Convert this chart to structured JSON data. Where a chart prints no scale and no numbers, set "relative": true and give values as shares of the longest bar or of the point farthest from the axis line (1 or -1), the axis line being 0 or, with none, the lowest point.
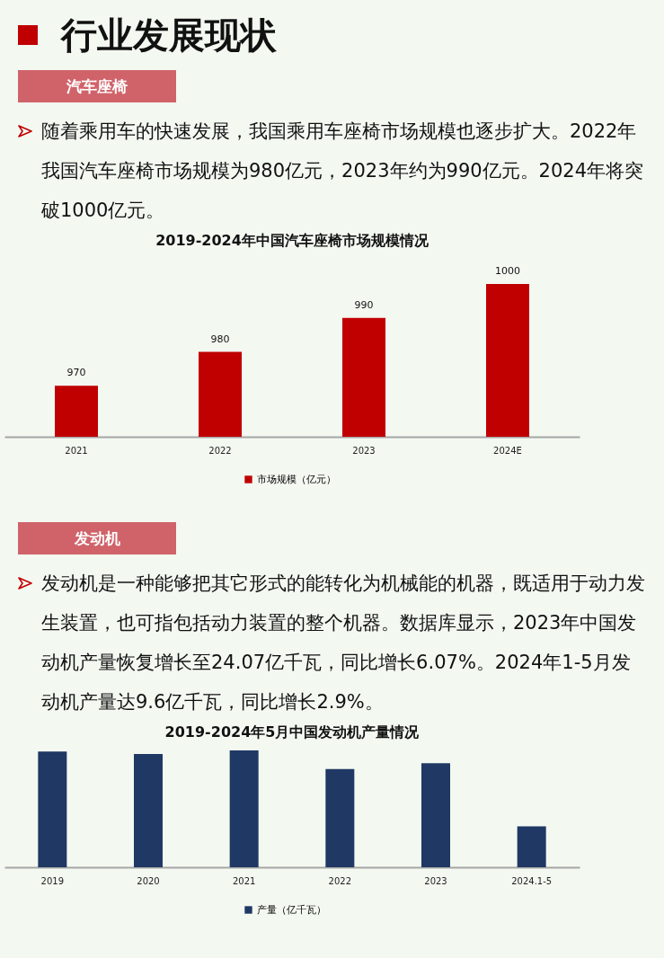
{
  "chart_data": [
    {
      "type": "other",
      "title": "行业发展现状",
      "subtitle": "汽车座椅",
      "annotations": [
        "随着乘用车的快速发展，我国乘用车座椅市场规模也逐步扩大。2022年我国汽车座椅市场规模为980亿元，2023年约为990亿元。2024年将突破1000亿元。"
      ]
    },
    {
      "type": "bar",
      "title": "2019-2024年中国汽车座椅市场规模情况",
      "categories": [
        "2021",
        "2022",
        "2023",
        "2024E"
      ],
      "series": [
        {
          "name": "市场规模（亿元）",
          "color": "#c00000",
          "values": [
            970,
            980,
            990,
            1000
          ]
        }
      ],
      "ylim": [
        955,
        1000
      ],
      "data_labels": true,
      "legend": "bottom"
    },
    {
      "type": "other",
      "subtitle": "发动机",
      "annotations": [
        "发动机是一种能够把其它形式的能转化为机械能的机器，既适用于动力发生装置，也可指包括动力装置的整个机器。数据库显示，2023年中国发动机产量恢复增长至24.07亿千瓦，同比增长6.07%。2024年1-5月发动机产量达9.6亿千瓦，同比增长2.9%。"
      ]
    },
    {
      "type": "bar",
      "title": "2019-2024年5月中国发动机产量情况",
      "categories": [
        "2019",
        "2020",
        "2021",
        "2022",
        "2023",
        "2024.1-5"
      ],
      "series": [
        {
          "name": "产量（亿千瓦）",
          "color": "#1f3864",
          "values": [
            0.99,
            0.97,
            1,
            0.84,
            0.89,
            0.35
          ]
        }
      ],
      "relative": true,
      "legend": "bottom"
    }
  ]
}
